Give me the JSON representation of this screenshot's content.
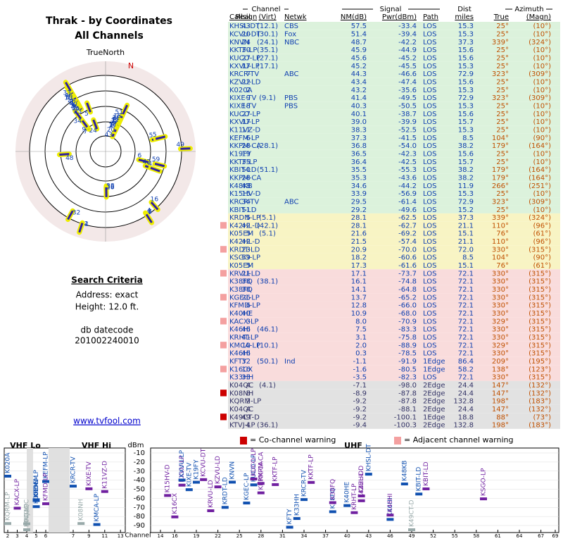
{
  "header": {
    "title": "Thrak - by Coordinates",
    "subtitle": "All Channels"
  },
  "radar": {
    "label": "TrueNorth",
    "north": "N"
  },
  "criteria": {
    "heading": "Search Criteria",
    "address": "Address: exact",
    "height": "Height: 12.0 ft.",
    "db_label": "db datecode",
    "db_code": "201002240010",
    "link": "www.tvfool.com"
  },
  "table": {
    "groups": [
      "Channel",
      "Signal",
      "Dist",
      "Azimuth"
    ],
    "columns": [
      "Callsign",
      "Real",
      "(Virt)",
      "Netwk",
      "NM(dB)",
      "Pwr(dBm)",
      "Path",
      "miles",
      "True",
      "(Magn)"
    ],
    "band_starts": [
      0,
      24,
      31,
      45
    ],
    "band_colors": [
      "#dcf2dc",
      "#f8f4c4",
      "#f9dcdc",
      "#e2e2e2"
    ],
    "rows": [
      [
        "KHSL-DT",
        "43",
        "(12.1)",
        "CBS",
        "57.5",
        "-33.4",
        "LOS",
        "15.3",
        "25°",
        "(10°)"
      ],
      [
        "KCVU-DT",
        "20",
        "(30.1)",
        "Fox",
        "51.4",
        "-39.4",
        "LOS",
        "15.3",
        "25°",
        "(10°)"
      ],
      [
        "KNVN",
        "24",
        "(24.1)",
        "NBC",
        "48.7",
        "-42.2",
        "LOS",
        "37.3",
        "339°",
        "(324°)"
      ],
      [
        "KKTF-LP",
        "30",
        "(35.1)",
        null,
        "45.9",
        "-44.9",
        "LOS",
        "15.6",
        "25°",
        "(10°)"
      ],
      [
        "KUCO-LP",
        "27",
        "(27.1)",
        null,
        "45.6",
        "-45.2",
        "LOS",
        "15.6",
        "25°",
        "(10°)"
      ],
      [
        "KXVU-LP",
        "17",
        "(17.1)",
        null,
        "45.2",
        "-45.5",
        "LOS",
        "15.3",
        "25°",
        "(10°)"
      ],
      [
        "KRCR-TV",
        "7",
        null,
        "ABC",
        "44.3",
        "-46.6",
        "LOS",
        "72.9",
        "323°",
        "(309°)"
      ],
      [
        "KZVU-LD",
        "22",
        null,
        null,
        "43.4",
        "-47.4",
        "LOS",
        "15.6",
        "25°",
        "(10°)"
      ],
      [
        "K020A",
        "2",
        null,
        null,
        "43.2",
        "-35.6",
        "LOS",
        "15.3",
        "25°",
        "(10°)"
      ],
      [
        "KIXE-TV",
        "9",
        "(9.1)",
        "PBS",
        "41.4",
        "-49.5",
        "LOS",
        "72.9",
        "323°",
        "(309°)"
      ],
      [
        "KIXE-TV",
        "18",
        null,
        "PBS",
        "40.3",
        "-50.5",
        "LOS",
        "15.3",
        "25°",
        "(10°)"
      ],
      [
        "KUCO-LP",
        "27",
        null,
        null,
        "40.1",
        "-38.7",
        "LOS",
        "15.6",
        "25°",
        "(10°)"
      ],
      [
        "KXVU-LP",
        "17",
        null,
        null,
        "39.0",
        "-39.9",
        "LOS",
        "15.7",
        "25°",
        "(10°)"
      ],
      [
        "K11VZ-D",
        "11",
        null,
        null,
        "38.3",
        "-52.5",
        "LOS",
        "15.3",
        "25°",
        "(10°)"
      ],
      [
        "KEFM-LP",
        "6",
        null,
        null,
        "37.3",
        "-41.5",
        "LOS",
        "8.5",
        "104°",
        "(90°)"
      ],
      [
        "KKPM-CA",
        "28",
        "(28.1)",
        null,
        "36.8",
        "-54.0",
        "LOS",
        "38.2",
        "179°",
        "(164°)"
      ],
      [
        "K19FY",
        "19",
        null,
        null,
        "36.5",
        "-42.3",
        "LOS",
        "15.6",
        "25°",
        "(10°)"
      ],
      [
        "KKTF-LP",
        "35",
        null,
        null,
        "36.4",
        "-42.5",
        "LOS",
        "15.7",
        "25°",
        "(10°)"
      ],
      [
        "KBIT-LD",
        "50",
        "(51.1)",
        null,
        "35.5",
        "-55.3",
        "LOS",
        "38.2",
        "179°",
        "(164°)"
      ],
      [
        "KKPM-CA",
        "28",
        null,
        null,
        "35.3",
        "-43.6",
        "LOS",
        "38.2",
        "179°",
        "(164°)"
      ],
      [
        "K48KB",
        "48",
        null,
        null,
        "34.6",
        "-44.2",
        "LOS",
        "11.9",
        "266°",
        "(251°)"
      ],
      [
        "K15HV-D",
        "15",
        null,
        null,
        "33.9",
        "-56.9",
        "LOS",
        "15.3",
        "25°",
        "(10°)"
      ],
      [
        "KRCR-TV",
        "34",
        null,
        "ABC",
        "29.5",
        "-61.4",
        "LOS",
        "72.9",
        "323°",
        "(309°)"
      ],
      [
        "KBIT-LD",
        "51",
        null,
        null,
        "29.2",
        "-49.6",
        "LOS",
        "15.2",
        "25°",
        "(10°)"
      ],
      [
        "KRDN-LP",
        "5",
        "(5.1)",
        null,
        "28.1",
        "-62.5",
        "LOS",
        "37.3",
        "339°",
        "(324°)"
      ],
      [
        "K42HL-D",
        "42",
        "(42.1)",
        null,
        "28.1",
        "-62.7",
        "LOS",
        "21.1",
        "110°",
        "(96°)"
      ],
      [
        "K05EM",
        "5",
        "(5.1)",
        null,
        "21.6",
        "-69.2",
        "LOS",
        "15.1",
        "76°",
        "(61°)"
      ],
      [
        "K42HL-D",
        "42",
        null,
        null,
        "21.5",
        "-57.4",
        "LOS",
        "21.1",
        "110°",
        "(96°)"
      ],
      [
        "KRDT-LD",
        "23",
        null,
        null,
        "20.9",
        "-70.0",
        "LOS",
        "72.0",
        "330°",
        "(315°)"
      ],
      [
        "KSGO-LP",
        "59",
        null,
        null,
        "18.2",
        "-60.6",
        "LOS",
        "8.5",
        "104°",
        "(90°)"
      ],
      [
        "K05EM",
        "5",
        null,
        null,
        "17.3",
        "-61.6",
        "LOS",
        "15.1",
        "76°",
        "(61°)"
      ],
      [
        "KRVU-LD",
        "21",
        null,
        null,
        "17.1",
        "-73.7",
        "LOS",
        "72.1",
        "330°",
        "(315°)"
      ],
      [
        "K38FQ",
        "38",
        "(38.1)",
        null,
        "16.1",
        "-74.8",
        "LOS",
        "72.1",
        "330°",
        "(315°)"
      ],
      [
        "K38FQ",
        "38",
        null,
        null,
        "14.1",
        "-64.8",
        "LOS",
        "72.1",
        "330°",
        "(315°)"
      ],
      [
        "KGEC-LP",
        "26",
        null,
        null,
        "13.7",
        "-65.2",
        "LOS",
        "72.1",
        "330°",
        "(315°)"
      ],
      [
        "KFMD-LP",
        "6",
        null,
        null,
        "12.8",
        "-66.0",
        "LOS",
        "72.1",
        "330°",
        "(315°)"
      ],
      [
        "K40HE",
        "40",
        null,
        null,
        "10.9",
        "-68.0",
        "LOS",
        "72.1",
        "330°",
        "(315°)"
      ],
      [
        "KACX-LP",
        "3",
        null,
        null,
        "8.0",
        "-70.9",
        "LOS",
        "72.1",
        "329°",
        "(315°)"
      ],
      [
        "K46HI",
        "46",
        "(46.1)",
        null,
        "7.5",
        "-83.3",
        "LOS",
        "72.1",
        "330°",
        "(315°)"
      ],
      [
        "KRHT-LP",
        "41",
        null,
        null,
        "3.1",
        "-75.8",
        "LOS",
        "72.1",
        "330°",
        "(315°)"
      ],
      [
        "KMCA-LP",
        "10",
        "(10.1)",
        null,
        "2.0",
        "-88.9",
        "LOS",
        "72.1",
        "329°",
        "(315°)"
      ],
      [
        "K46HI",
        "46",
        null,
        null,
        "0.3",
        "-78.5",
        "LOS",
        "72.1",
        "330°",
        "(315°)"
      ],
      [
        "KFTY",
        "32",
        "(50.1)",
        "Ind",
        "-1.1",
        "-91.9",
        "1Edge",
        "86.4",
        "209°",
        "(195°)"
      ],
      [
        "K16CX",
        "16",
        null,
        null,
        "-1.6",
        "-80.5",
        "1Edge",
        "58.2",
        "138°",
        "(123°)"
      ],
      [
        "K33HH",
        "33",
        null,
        null,
        "-3.5",
        "-82.3",
        "LOS",
        "72.1",
        "330°",
        "(315°)"
      ],
      [
        "K04QC",
        "4",
        "(4.1)",
        null,
        "-7.1",
        "-98.0",
        "2Edge",
        "24.4",
        "147°",
        "(132°)"
      ],
      [
        "K08NH",
        "8",
        null,
        null,
        "-8.9",
        "-87.8",
        "2Edge",
        "24.4",
        "147°",
        "(132°)"
      ],
      [
        "KQRM-LP",
        "2",
        null,
        null,
        "-9.2",
        "-87.8",
        "2Edge",
        "132.8",
        "198°",
        "(183°)"
      ],
      [
        "K04QC",
        "4",
        null,
        null,
        "-9.2",
        "-88.1",
        "2Edge",
        "24.4",
        "147°",
        "(132°)"
      ],
      [
        "K49CT-D",
        "49",
        null,
        null,
        "-9.2",
        "-100.1",
        "1Edge",
        "18.8",
        "88°",
        "(73°)"
      ],
      [
        "KTVJ-LP",
        "4",
        "(36.1)",
        null,
        "-9.4",
        "-100.3",
        "2Edge",
        "132.8",
        "198°",
        "(183°)"
      ]
    ]
  },
  "spectrum": {
    "legend": [
      "= Co-channel warning",
      "= Adjacent channel warning"
    ],
    "bands": [
      "VHF Lo",
      "VHF Hi",
      "UHF"
    ],
    "ylabel": "dBm",
    "xlabel": "Channel",
    "ylim": [
      -95,
      -5
    ],
    "yticks": [
      -10,
      -20,
      -30,
      -40,
      -50,
      -60,
      -70,
      -80,
      -90
    ],
    "xticks": [
      2,
      3,
      4,
      5,
      6,
      7,
      9,
      11,
      13,
      14,
      16,
      19,
      22,
      25,
      28,
      31,
      34,
      37,
      40,
      43,
      46,
      49,
      52,
      55,
      58,
      61,
      64,
      67,
      69
    ]
  }
}
